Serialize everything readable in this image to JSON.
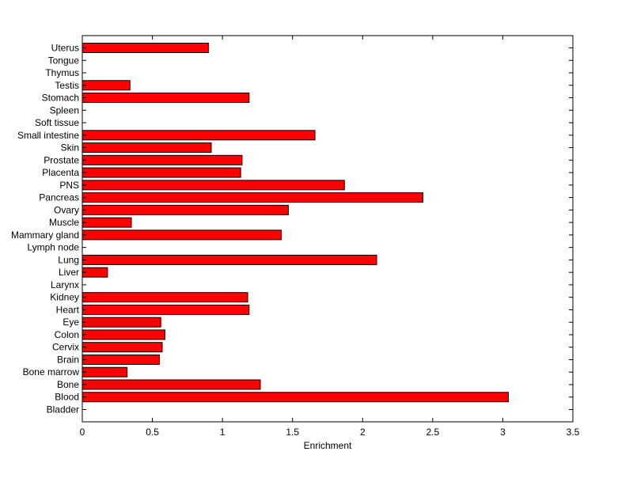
{
  "chart_data": {
    "type": "bar",
    "orientation": "horizontal",
    "xlabel": "Enrichment",
    "ylabel": "",
    "title": "",
    "xlim": [
      0,
      3.5
    ],
    "xticks": [
      "0",
      "0.5",
      "1",
      "1.5",
      "2",
      "2.5",
      "3",
      "3.5"
    ],
    "grid": false,
    "bar_color": "#ff0000",
    "categories": [
      "Bladder",
      "Blood",
      "Bone",
      "Bone marrow",
      "Brain",
      "Cervix",
      "Colon",
      "Eye",
      "Heart",
      "Kidney",
      "Larynx",
      "Liver",
      "Lung",
      "Lymph node",
      "Mammary gland",
      "Muscle",
      "Ovary",
      "Pancreas",
      "PNS",
      "Placenta",
      "Prostate",
      "Skin",
      "Small intestine",
      "Soft tissue",
      "Spleen",
      "Stomach",
      "Testis",
      "Thymus",
      "Tongue",
      "Uterus"
    ],
    "values": [
      0,
      3.04,
      1.27,
      0.32,
      0.55,
      0.57,
      0.59,
      0.56,
      1.19,
      1.18,
      0,
      0.18,
      2.1,
      0,
      1.42,
      0.35,
      1.47,
      2.43,
      1.87,
      1.13,
      1.14,
      0.92,
      1.66,
      0,
      0,
      1.19,
      0.34,
      0,
      0,
      0.9
    ]
  }
}
